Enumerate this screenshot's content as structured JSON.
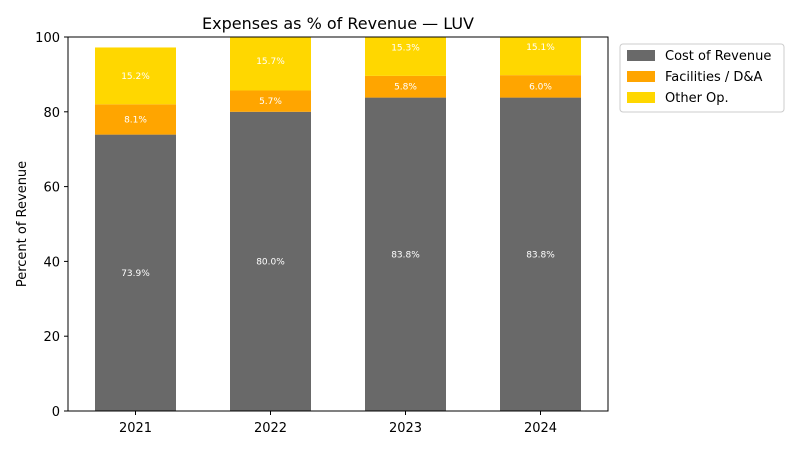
{
  "chart_data": {
    "type": "bar",
    "stacked": true,
    "title": "Expenses as % of Revenue — LUV",
    "xlabel": "",
    "ylabel": "Percent of Revenue",
    "categories": [
      "2021",
      "2022",
      "2023",
      "2024"
    ],
    "ylim": [
      0,
      100
    ],
    "yticks": [
      0,
      20,
      40,
      60,
      80,
      100
    ],
    "grid": false,
    "legend_position": "outside-top-right",
    "series": [
      {
        "name": "Cost of Revenue",
        "color": "#696969",
        "values": [
          73.9,
          80.0,
          83.8,
          83.8
        ],
        "labels": [
          "73.9%",
          "80.0%",
          "83.8%",
          "83.8%"
        ]
      },
      {
        "name": "Facilities / D&A",
        "color": "#FFA500",
        "values": [
          8.1,
          5.7,
          5.8,
          6.0
        ],
        "labels": [
          "8.1%",
          "5.7%",
          "5.8%",
          "6.0%"
        ]
      },
      {
        "name": "Other Op.",
        "color": "#FFD700",
        "values": [
          15.2,
          15.7,
          15.3,
          15.1
        ],
        "labels": [
          "15.2%",
          "15.7%",
          "15.3%",
          "15.1%"
        ]
      }
    ]
  }
}
